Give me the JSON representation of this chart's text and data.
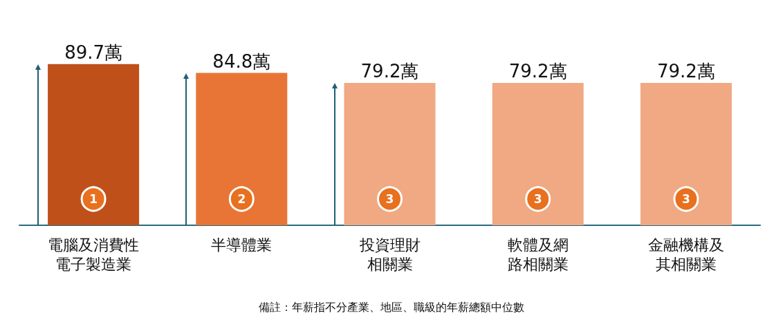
{
  "chart_data": {
    "type": "bar",
    "categories": [
      "電腦及消費性電子製造業",
      "半導體業",
      "投資理財相關業",
      "軟體及網路相關業",
      "金融機構及其相關業"
    ],
    "values": [
      89.7,
      84.8,
      79.2,
      79.2,
      79.2
    ],
    "value_labels": [
      "89.7萬",
      "84.8萬",
      "79.2萬",
      "79.2萬",
      "79.2萬"
    ],
    "colors": [
      "#c0501a",
      "#e87535",
      "#f0a983",
      "#f0a983",
      "#f0a983"
    ],
    "annotations": [
      {
        "text": "1",
        "x": "電腦及消費性電子製造業"
      },
      {
        "text": "2",
        "x": "半導體業"
      },
      {
        "text": "3",
        "x": "投資理財相關業"
      },
      {
        "text": "3",
        "x": "軟體及網路相關業"
      },
      {
        "text": "3",
        "x": "金融機構及其相關業"
      },
      "備註：年薪指不分產業、地區、職級的年薪總額中位數"
    ]
  }
}
